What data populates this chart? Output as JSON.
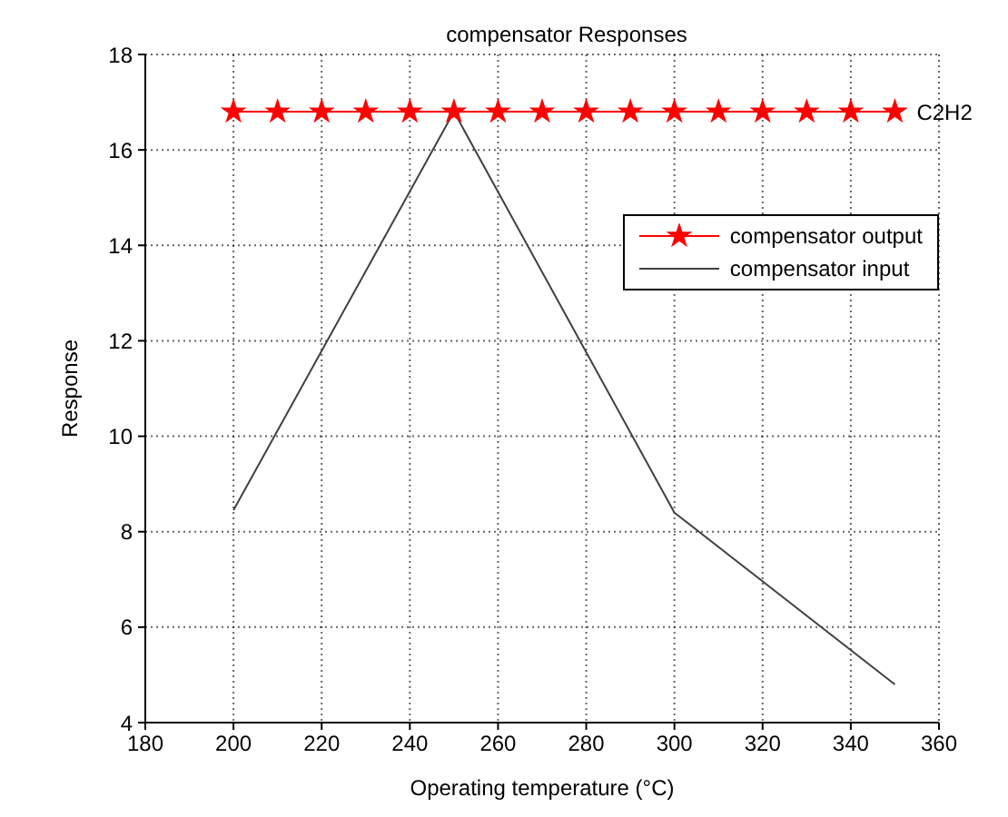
{
  "chart_data": {
    "type": "line",
    "title": "compensator Responses",
    "xlabel": "Operating temperature (°C)",
    "ylabel": "Response",
    "xlim": [
      180,
      360
    ],
    "xticks": [
      180,
      200,
      220,
      240,
      260,
      280,
      300,
      320,
      340,
      360
    ],
    "ylim": [
      4,
      18
    ],
    "yticks": [
      4,
      6,
      8,
      10,
      12,
      14,
      16,
      18
    ],
    "grid": true,
    "legend": "right",
    "series": [
      {
        "name": "compensator output",
        "color": "#ff0000",
        "marker": "star",
        "x": [
          200,
          210,
          220,
          230,
          240,
          250,
          260,
          270,
          280,
          290,
          300,
          310,
          320,
          330,
          340,
          350
        ],
        "values": [
          16.8,
          16.8,
          16.8,
          16.8,
          16.8,
          16.8,
          16.8,
          16.8,
          16.8,
          16.8,
          16.8,
          16.8,
          16.8,
          16.8,
          16.8,
          16.8
        ]
      },
      {
        "name": "compensator input",
        "color": "#404040",
        "marker": "none",
        "x": [
          200,
          250,
          300,
          350
        ],
        "values": [
          8.45,
          16.8,
          8.4,
          4.8
        ]
      }
    ],
    "annotations": [
      {
        "text": "C2H2",
        "x": 350,
        "y": 16.8
      }
    ]
  }
}
